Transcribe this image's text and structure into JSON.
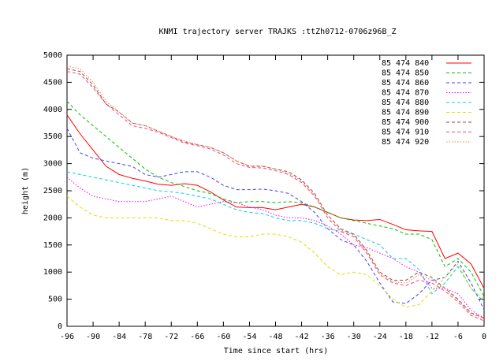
{
  "chart_data": {
    "type": "line",
    "title": "KNMI trajectory server TRAJKS :ttZh0712-0706z96B_Z",
    "x_label": "Time since start (hrs)",
    "y_label": "height (m)",
    "x": [
      -96,
      -93,
      -90,
      -87,
      -84,
      -81,
      -78,
      -75,
      -72,
      -69,
      -66,
      -63,
      -60,
      -57,
      -54,
      -51,
      -48,
      -45,
      -42,
      -39,
      -36,
      -33,
      -30,
      -27,
      -24,
      -21,
      -18,
      -15,
      -12,
      -9,
      -6,
      -3,
      0
    ],
    "xlim": [
      -96,
      0
    ],
    "xticks": [
      -96,
      -90,
      -84,
      -78,
      -72,
      -66,
      -60,
      -54,
      -48,
      -42,
      -36,
      -30,
      -24,
      -18,
      -12,
      -6,
      0
    ],
    "ylim": [
      0,
      5000
    ],
    "yticks": [
      0,
      500,
      1000,
      1500,
      2000,
      2500,
      3000,
      3500,
      4000,
      4500,
      5000
    ],
    "legend": "top-right",
    "series": [
      {
        "name": "85 474 840",
        "color": "#ff0000",
        "dash": "solid",
        "values": [
          3900,
          3550,
          3250,
          2950,
          2800,
          2730,
          2680,
          2620,
          2600,
          2630,
          2600,
          2480,
          2330,
          2200,
          2190,
          2190,
          2150,
          2200,
          2250,
          2200,
          2100,
          2000,
          1960,
          1950,
          1970,
          1880,
          1780,
          1760,
          1750,
          1250,
          1350,
          1150,
          700
        ]
      },
      {
        "name": "85 474 850",
        "color": "#00c000",
        "dash": "dashed",
        "values": [
          4150,
          3900,
          3700,
          3500,
          3300,
          3100,
          2900,
          2750,
          2650,
          2580,
          2500,
          2450,
          2350,
          2280,
          2300,
          2300,
          2280,
          2300,
          2280,
          2200,
          2100,
          2000,
          1950,
          1900,
          1850,
          1800,
          1700,
          1700,
          1600,
          1100,
          1250,
          1000,
          550
        ]
      },
      {
        "name": "85 474 860",
        "color": "#4040ff",
        "dash": "dashed",
        "values": [
          3650,
          3200,
          3100,
          3050,
          3000,
          2950,
          2800,
          2750,
          2800,
          2850,
          2850,
          2750,
          2600,
          2520,
          2520,
          2530,
          2500,
          2450,
          2300,
          2100,
          1800,
          1600,
          1500,
          1200,
          800,
          450,
          420,
          600,
          850,
          900,
          1200,
          800,
          300
        ]
      },
      {
        "name": "85 474 870",
        "color": "#ff00ff",
        "dash": "dotted",
        "values": [
          2750,
          2550,
          2400,
          2350,
          2300,
          2300,
          2300,
          2350,
          2400,
          2300,
          2200,
          2250,
          2300,
          2280,
          2200,
          2150,
          2050,
          2000,
          2000,
          1950,
          1850,
          1700,
          1500,
          1450,
          1350,
          1250,
          1100,
          1000,
          700,
          700,
          600,
          300,
          150
        ]
      },
      {
        "name": "85 474 880",
        "color": "#00d0e0",
        "dash": "dashed",
        "values": [
          2850,
          2800,
          2750,
          2700,
          2650,
          2600,
          2550,
          2500,
          2480,
          2450,
          2400,
          2350,
          2250,
          2150,
          2100,
          2080,
          2000,
          1950,
          1950,
          1900,
          1800,
          1750,
          1700,
          1600,
          1500,
          1250,
          1250,
          1050,
          600,
          800,
          1100,
          700,
          450
        ]
      },
      {
        "name": "85 474 890",
        "color": "#e0e000",
        "dash": "dashed",
        "values": [
          2400,
          2200,
          2050,
          2000,
          2000,
          2000,
          2000,
          2000,
          1950,
          1950,
          1900,
          1800,
          1700,
          1650,
          1650,
          1700,
          1700,
          1650,
          1550,
          1350,
          1100,
          950,
          1000,
          950,
          750,
          500,
          350,
          400,
          650,
          900,
          1150,
          700,
          500
        ]
      },
      {
        "name": "85 474 900",
        "color": "#805050",
        "dash": "dashed",
        "values": [
          4750,
          4700,
          4450,
          4100,
          3950,
          3750,
          3700,
          3600,
          3500,
          3400,
          3350,
          3300,
          3200,
          3050,
          2950,
          2950,
          2900,
          2850,
          2700,
          2450,
          2050,
          1800,
          1700,
          1400,
          1000,
          850,
          850,
          1000,
          900,
          700,
          500,
          250,
          150
        ]
      },
      {
        "name": "85 474 910",
        "color": "#ff4080",
        "dash": "dashed",
        "values": [
          4700,
          4650,
          4400,
          4100,
          3900,
          3700,
          3650,
          3580,
          3480,
          3380,
          3330,
          3270,
          3160,
          3000,
          2930,
          2920,
          2870,
          2800,
          2650,
          2400,
          2000,
          1750,
          1650,
          1350,
          950,
          800,
          750,
          850,
          800,
          650,
          450,
          200,
          100
        ]
      },
      {
        "name": "85 474 920",
        "color": "#ff8040",
        "dash": "dotted",
        "values": [
          4800,
          4750,
          4500,
          4150,
          3950,
          3750,
          3700,
          3600,
          3500,
          3420,
          3350,
          3300,
          3200,
          3050,
          2960,
          2960,
          2900,
          2820,
          2680,
          2420,
          2050,
          1780,
          1680,
          1380,
          980,
          820,
          800,
          950,
          850,
          700,
          480,
          230,
          130
        ]
      }
    ]
  }
}
